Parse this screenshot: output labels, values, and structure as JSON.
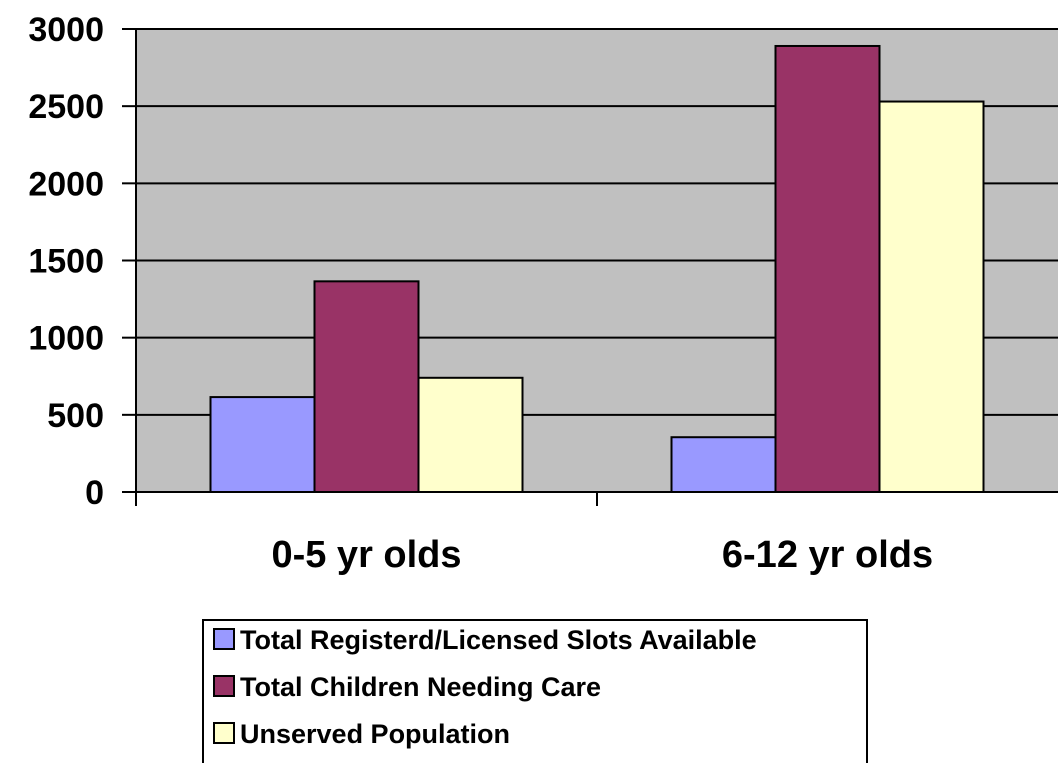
{
  "chart_data": {
    "type": "bar",
    "categories": [
      "0-5 yr olds",
      "6-12 yr olds"
    ],
    "series": [
      {
        "name": "Total Registerd/Licensed Slots Available",
        "values": [
          615,
          355
        ],
        "color": "#9999ff"
      },
      {
        "name": "Total Children Needing Care",
        "values": [
          1365,
          2890
        ],
        "color": "#993366"
      },
      {
        "name": "Unserved Population",
        "values": [
          740,
          2530
        ],
        "color": "#ffffcc"
      }
    ],
    "title": "",
    "xlabel": "",
    "ylabel": "",
    "ylim": [
      0,
      3000
    ],
    "yticks": [
      0,
      500,
      1000,
      1500,
      2000,
      2500,
      3000
    ],
    "grid": true,
    "plot_background": "#c0c0c0",
    "legend_position": "bottom"
  }
}
